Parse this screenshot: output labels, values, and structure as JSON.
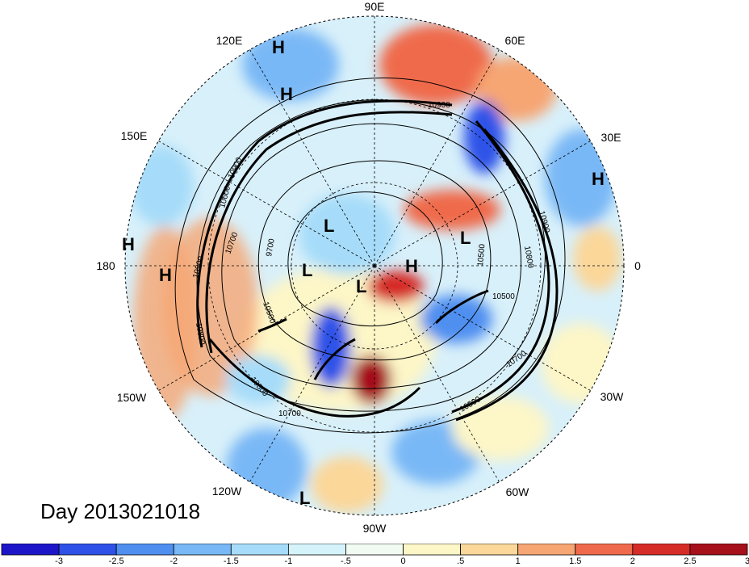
{
  "title": "Day 2013021018",
  "longitude_labels": [
    "90E",
    "60E",
    "30E",
    "0",
    "30W",
    "60W",
    "90W",
    "120W",
    "150W",
    "180",
    "150E",
    "120E"
  ],
  "pressure_centers": [
    {
      "type": "H"
    },
    {
      "type": "H"
    },
    {
      "type": "H"
    },
    {
      "type": "H"
    },
    {
      "type": "H"
    },
    {
      "type": "H"
    },
    {
      "type": "L"
    },
    {
      "type": "L"
    },
    {
      "type": "L"
    },
    {
      "type": "L"
    },
    {
      "type": "L"
    }
  ],
  "contour_labels": [
    "10900",
    "10900",
    "10900",
    "10800",
    "10800",
    "10800",
    "10700",
    "10700",
    "10700",
    "10600",
    "10500",
    "10500",
    "10500",
    "9700",
    "10900",
    "10800"
  ],
  "colorbar": {
    "tick_labels": [
      "-3",
      "-2.5",
      "-2",
      "-1.5",
      "-1",
      "-.5",
      "0",
      ".5",
      "1",
      "1.5",
      "2",
      "2.5",
      "3"
    ],
    "colors": [
      "#1d16c8",
      "#2e52e8",
      "#4f8ff0",
      "#79b8f6",
      "#a6dcf9",
      "#d4f3fb",
      "#f2fbf2",
      "#fdf6c7",
      "#fbd79a",
      "#f6a673",
      "#ef6a4c",
      "#d62c28",
      "#a6101b"
    ]
  }
}
